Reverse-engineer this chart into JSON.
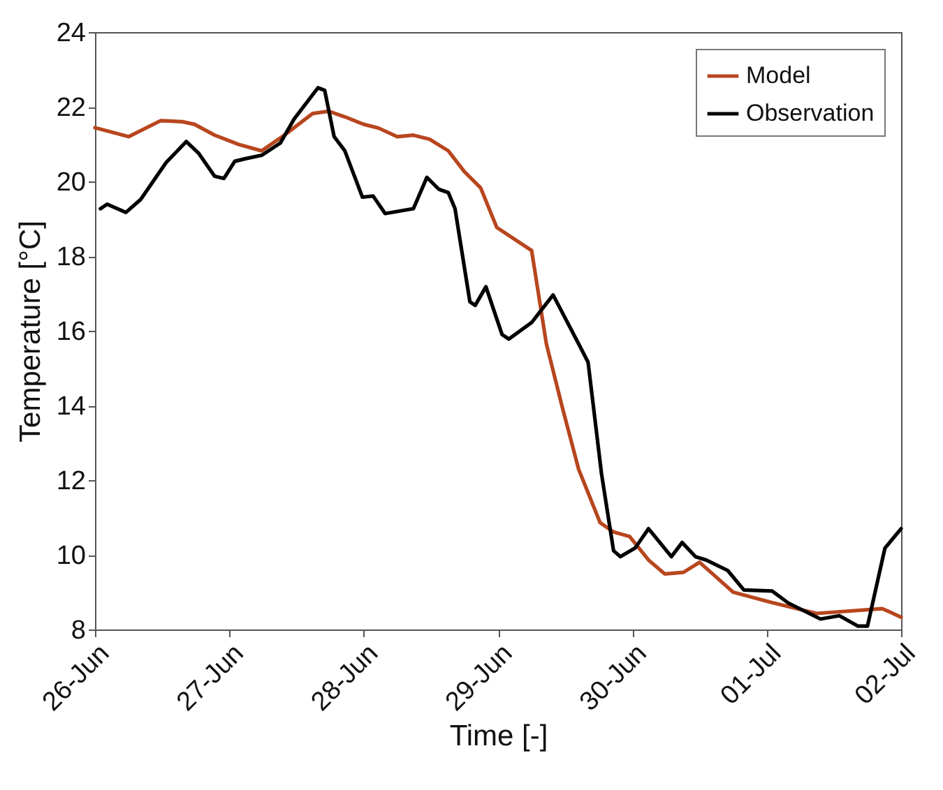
{
  "chart_data": {
    "type": "line",
    "xlabel": "Time [-]",
    "ylabel": "Temperature [°C]",
    "xlim": [
      "--06-26",
      "--07-02"
    ],
    "ylim": [
      8,
      24
    ],
    "xticks": [
      {
        "value": "--06-26",
        "label": "26-Jun"
      },
      {
        "value": "--06-27",
        "label": "27-Jun"
      },
      {
        "value": "--06-28",
        "label": "28-Jun"
      },
      {
        "value": "--06-29",
        "label": "29-Jun"
      },
      {
        "value": "--06-30",
        "label": "30-Jun"
      },
      {
        "value": "--07-01",
        "label": "01-Jul"
      },
      {
        "value": "--07-02",
        "label": "02-Jul"
      }
    ],
    "yticks": [
      8,
      10,
      12,
      14,
      16,
      18,
      20,
      22,
      24
    ],
    "legend": "top right",
    "grid": false,
    "line_style": "solid",
    "marker": "none",
    "series": [
      {
        "name": "Model",
        "color": "#b8461e",
        "x": [
          "--06-26T00:00",
          "--06-26T06:00",
          "--06-26T11:46",
          "--06-26T15:36",
          "--06-26T17:46",
          "--06-26T21:22",
          "--06-27T01:41",
          "--06-27T05:46",
          "--06-27T09:50",
          "--06-27T14:53",
          "--06-27T17:46",
          "--06-27T20:38",
          "--06-28T00:00",
          "--06-28T02:38",
          "--06-28T06:00",
          "--06-28T08:53",
          "--06-28T11:46",
          "--06-28T15:07",
          "--06-28T18:00",
          "--06-28T20:53",
          "--06-28T23:46",
          "--06-29T06:00",
          "--06-29T08:38",
          "--06-29T11:31",
          "--06-29T14:24",
          "--06-29T18:14",
          "--06-29T20:38",
          "--06-29T23:31",
          "--06-30T02:53",
          "--06-30T05:46",
          "--06-30T09:07",
          "--06-30T12:00",
          "--06-30T18:00",
          "--07-01T00:29",
          "--07-01T08:53",
          "--07-01T20:38",
          "--07-02T00:00"
        ],
        "values": [
          21.44,
          21.2,
          21.63,
          21.6,
          21.53,
          21.24,
          20.99,
          20.82,
          21.24,
          21.82,
          21.88,
          21.73,
          21.53,
          21.43,
          21.2,
          21.24,
          21.13,
          20.82,
          20.26,
          19.83,
          18.77,
          18.15,
          15.65,
          13.93,
          12.29,
          10.86,
          10.61,
          10.49,
          9.86,
          9.49,
          9.53,
          9.8,
          9.0,
          8.74,
          8.43,
          8.56,
          8.33
        ]
      },
      {
        "name": "Observation",
        "color": "#000000",
        "x": [
          "--06-26T00:58",
          "--06-26T02:10",
          "--06-26T05:31",
          "--06-26T08:10",
          "--06-26T12:43",
          "--06-26T16:19",
          "--06-26T18:29",
          "--06-26T21:22",
          "--06-26T23:02",
          "--06-27T00:58",
          "--06-27T02:53",
          "--06-27T05:46",
          "--06-27T09:07",
          "--06-27T11:31",
          "--06-27T15:50",
          "--06-27T17:02",
          "--06-27T18:43",
          "--06-27T20:38",
          "--06-27T23:46",
          "--06-28T01:41",
          "--06-28T03:50",
          "--06-28T08:53",
          "--06-28T11:17",
          "--06-28T13:26",
          "--06-28T15:07",
          "--06-28T16:19",
          "--06-28T18:58",
          "--06-28T19:55",
          "--06-28T21:50",
          "--06-29T00:43",
          "--06-29T01:55",
          "--06-29T06:00",
          "--06-29T09:50",
          "--06-29T14:24",
          "--06-29T16:05",
          "--06-29T18:29",
          "--06-29T20:38",
          "--06-29T21:50",
          "--06-30T00:29",
          "--06-30T02:53",
          "--06-30T06:58",
          "--06-30T08:53",
          "--06-30T11:17",
          "--06-30T13:12",
          "--06-30T17:02",
          "--06-30T19:55",
          "--07-01T00:58",
          "--07-01T03:50",
          "--07-01T09:36",
          "--07-01T12:58",
          "--07-01T16:19",
          "--07-01T18:00",
          "--07-01T21:07",
          "--07-02T00:00"
        ],
        "values": [
          19.27,
          19.39,
          19.17,
          19.52,
          20.51,
          21.07,
          20.76,
          20.14,
          20.08,
          20.54,
          20.61,
          20.7,
          21.03,
          21.66,
          22.51,
          22.44,
          21.2,
          20.82,
          19.58,
          19.61,
          19.14,
          19.27,
          20.11,
          19.79,
          19.7,
          19.27,
          16.78,
          16.68,
          17.18,
          15.9,
          15.78,
          16.22,
          16.96,
          15.65,
          15.16,
          12.17,
          10.11,
          9.95,
          10.18,
          10.7,
          9.95,
          10.33,
          9.95,
          9.86,
          9.58,
          9.06,
          9.03,
          8.71,
          8.28,
          8.37,
          8.09,
          8.09,
          10.18,
          10.7
        ]
      }
    ]
  }
}
